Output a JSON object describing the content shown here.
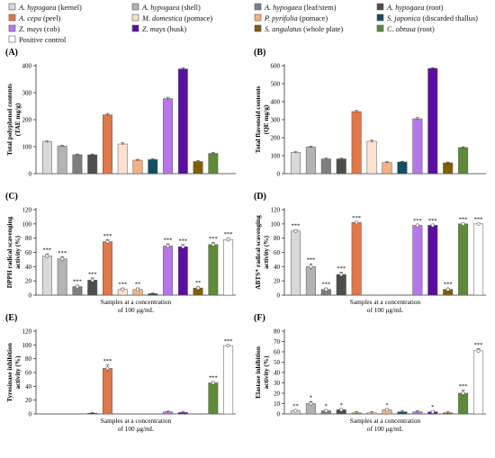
{
  "legend": {
    "colors": [
      "#d9d9d9",
      "#b3b3b3",
      "#7f7f7f",
      "#4d4d4d",
      "#e0784a",
      "#fde0cf",
      "#f4b183",
      "#124e63",
      "#b678e8",
      "#5a0fa0",
      "#7f5f00",
      "#5f8a3a",
      "#ffffff"
    ],
    "items": [
      {
        "name": "A. hypogaea",
        "suffix": " (kernel)"
      },
      {
        "name": "A. hypogaea",
        "suffix": " (shell)"
      },
      {
        "name": "A. hypogaea",
        "suffix": " (leaf/stem)"
      },
      {
        "name": "A. hypogaea",
        "suffix": " (root)"
      },
      {
        "name": "A. cepa",
        "suffix": " (peel)"
      },
      {
        "name": "M. domestica",
        "suffix": " (pomace)"
      },
      {
        "name": "P. pyrifolia",
        "suffix": " (pomace)"
      },
      {
        "name": "S. japonica",
        "suffix": " (discarded thallus)"
      },
      {
        "name": "Z. mays",
        "suffix": " (cob)"
      },
      {
        "name": "Z. mays",
        "suffix": " (husk)"
      },
      {
        "name": "S. angulatus",
        "suffix": " (whole plate)"
      },
      {
        "name": "C. obtusa",
        "suffix": " (root)"
      },
      {
        "name": "",
        "suffix": "Positive control"
      }
    ]
  },
  "chart_data": [
    {
      "type": "bar",
      "panel_label": "(A)",
      "ylabel": [
        "Total polyphenol contents",
        "(TAE mg/g)"
      ],
      "ylim": [
        0,
        400
      ],
      "yticks": [
        0,
        100,
        200,
        300,
        400
      ],
      "xlabel": [],
      "values": [
        118,
        102,
        70,
        70,
        218,
        110,
        50,
        52,
        278,
        388,
        45,
        75
      ],
      "errors": [
        3,
        3,
        3,
        3,
        5,
        4,
        3,
        3,
        5,
        4,
        3,
        3
      ],
      "sig": []
    },
    {
      "type": "bar",
      "panel_label": "(B)",
      "ylabel": [
        "Total flavonoid contents",
        "(QE mg/g)"
      ],
      "ylim": [
        0,
        600
      ],
      "yticks": [
        0,
        100,
        200,
        300,
        400,
        500,
        600
      ],
      "xlabel": [],
      "values": [
        118,
        148,
        82,
        82,
        345,
        180,
        62,
        65,
        305,
        585,
        60,
        145
      ],
      "errors": [
        4,
        4,
        4,
        4,
        6,
        6,
        4,
        4,
        6,
        4,
        4,
        4
      ],
      "sig": []
    },
    {
      "type": "bar",
      "panel_label": "(C)",
      "ylabel": [
        "DPPH radical scavenging",
        "activity (%)"
      ],
      "ylim": [
        0,
        120
      ],
      "yticks": [
        0,
        20,
        40,
        60,
        80,
        100,
        120
      ],
      "xlabel": [
        "Samples at a concentration",
        "of 100 μg/mL"
      ],
      "values": [
        55,
        51,
        12,
        21,
        75,
        8,
        8,
        2,
        69,
        68,
        10,
        71,
        78
      ],
      "errors": [
        3,
        3,
        2,
        3,
        3,
        2,
        2,
        1,
        3,
        3,
        2,
        3,
        2
      ],
      "sig": [
        "***",
        "***",
        "***",
        "***",
        "***",
        "***",
        "**",
        "",
        "***",
        "***",
        "**",
        "***",
        "***"
      ]
    },
    {
      "type": "bar",
      "panel_label": "(D)",
      "ylabel": [
        "ABTS⁺ radical scavenging",
        "activity (%)"
      ],
      "ylim": [
        0,
        120
      ],
      "yticks": [
        0,
        20,
        40,
        60,
        80,
        100,
        120
      ],
      "xlabel": [
        "Samples at a concentration",
        "of 100 μg/mL"
      ],
      "values": [
        90,
        40,
        8,
        29,
        102,
        0,
        0,
        0,
        98,
        98,
        8,
        100,
        100
      ],
      "errors": [
        2,
        4,
        2,
        3,
        1,
        0,
        0,
        0,
        1,
        1,
        2,
        1,
        1
      ],
      "sig": [
        "***",
        "***",
        "***",
        "***",
        "***",
        "",
        "",
        "",
        "***",
        "***",
        "***",
        "***",
        "***"
      ]
    },
    {
      "type": "bar",
      "panel_label": "(E)",
      "ylabel": [
        "Tyrosinase inhibition",
        "activity (%)"
      ],
      "ylim": [
        0,
        120
      ],
      "yticks": [
        0,
        20,
        40,
        60,
        80,
        100,
        120
      ],
      "xlabel": [
        "Samples at a concentration",
        "of 100 μg/mL"
      ],
      "values": [
        0,
        0,
        0,
        1,
        66,
        0,
        0,
        0,
        3,
        2,
        0,
        45,
        99
      ],
      "errors": [
        0,
        0,
        0,
        1,
        5,
        0,
        0,
        0,
        1,
        1,
        0,
        2,
        1
      ],
      "sig": [
        "",
        "",
        "",
        "",
        "***",
        "",
        "",
        "",
        "",
        "",
        "",
        "***",
        "***"
      ]
    },
    {
      "type": "bar",
      "panel_label": "(F)",
      "ylabel": [
        "Elastase inhibition",
        "activity (%)"
      ],
      "ylim": [
        0,
        80
      ],
      "yticks": [
        0,
        10,
        20,
        30,
        40,
        50,
        60,
        70,
        80
      ],
      "xlabel": [
        "Samples at a concentration",
        "of 100 μg/mL"
      ],
      "values": [
        3,
        10,
        3,
        4,
        1,
        1,
        4,
        2,
        2,
        2,
        1,
        20,
        61
      ],
      "errors": [
        1,
        2,
        1,
        1,
        1,
        1,
        1,
        1,
        1,
        1,
        1,
        3,
        2
      ],
      "sig": [
        "**",
        "*",
        "*",
        "*",
        "",
        "",
        "*",
        "",
        "",
        "*",
        "",
        "***",
        "***"
      ]
    }
  ]
}
